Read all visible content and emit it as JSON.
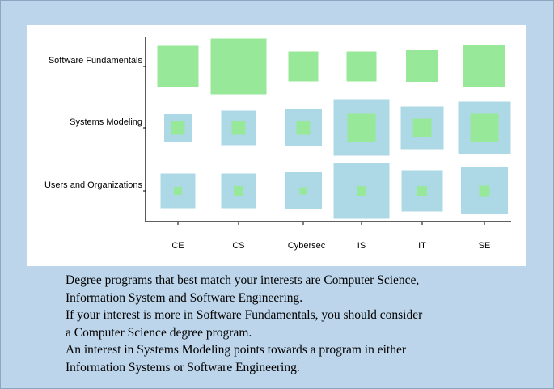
{
  "chart_data": {
    "type": "bubble-matrix",
    "rows": [
      "Software  Fundamentals",
      "Systems Modeling",
      "Users and Organizations"
    ],
    "columns": [
      "CE",
      "CS",
      "Cybersec",
      "IS",
      "IT",
      "SE"
    ],
    "outer_values": [
      [
        0,
        0,
        0,
        0,
        0,
        0
      ],
      [
        0.34,
        0.43,
        0.46,
        0.69,
        0.53,
        0.65
      ],
      [
        0.43,
        0.43,
        0.46,
        0.69,
        0.51,
        0.58
      ]
    ],
    "inner_values": [
      [
        0.51,
        0.69,
        0.37,
        0.37,
        0.4,
        0.52
      ],
      [
        0.17,
        0.17,
        0.17,
        0.35,
        0.23,
        0.35
      ],
      [
        0.1,
        0.12,
        0.09,
        0.12,
        0.12,
        0.13
      ]
    ],
    "colors": {
      "outer": "#add8e6",
      "inner": "#98e89a",
      "axis": "#000000"
    }
  },
  "caption": {
    "lines": [
      "Degree programs that best match your interests are Computer Science,",
      "Information System and Software Engineering.",
      "If your interest is more in Software Fundamentals,  you should consider",
      "a Computer Science degree program.",
      "An interest in Systems Modeling points towards a program in either",
      "Information Systems  or Software Engineering."
    ]
  }
}
